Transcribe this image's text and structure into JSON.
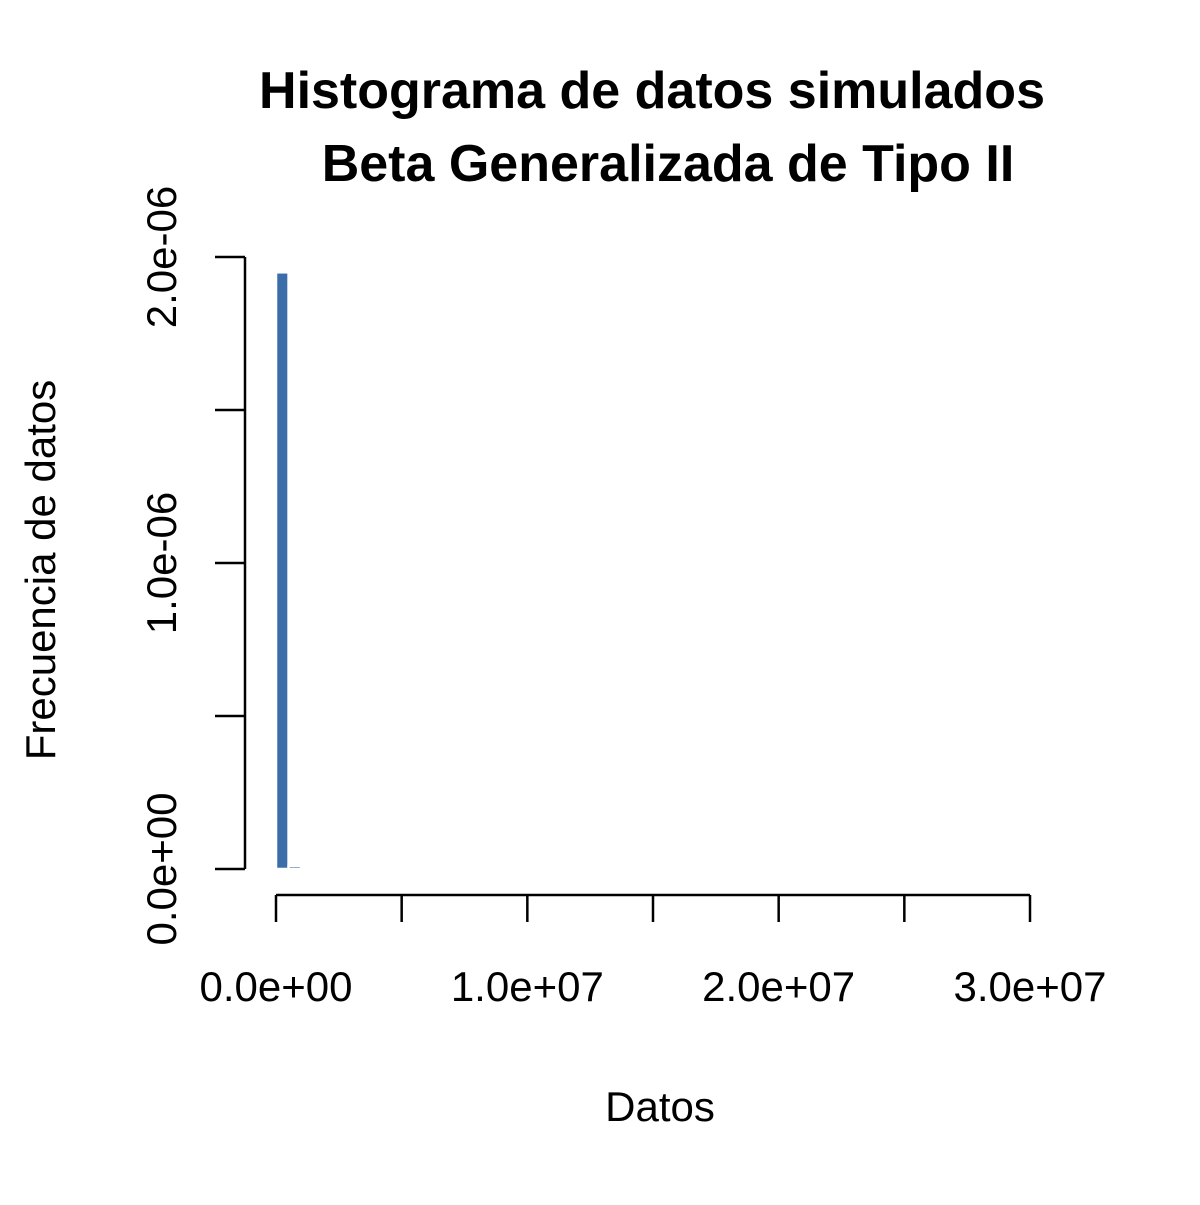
{
  "chart_data": {
    "type": "histogram",
    "title": [
      "Histograma de datos simulados",
      "Beta Generalizada de Tipo II"
    ],
    "x_label": "Datos",
    "y_label": "Frecuencia de datos",
    "bins": [
      0,
      500000,
      1000000
    ],
    "counts": [
      1.95e-06,
      1e-08
    ],
    "color": "#3b6ea8",
    "xlim": [
      0,
      30000000
    ],
    "xticks": [
      {
        "value": 0,
        "label": "0.0e+00"
      },
      {
        "value": 5000000,
        "label": null
      },
      {
        "value": 10000000,
        "label": "1.0e+07"
      },
      {
        "value": 15000000,
        "label": null
      },
      {
        "value": 20000000,
        "label": "2.0e+07"
      },
      {
        "value": 25000000,
        "label": null
      },
      {
        "value": 30000000,
        "label": "3.0e+07"
      }
    ],
    "ylim": [
      0,
      2e-06
    ],
    "yticks": [
      {
        "value": 0,
        "label": "0.0e+00"
      },
      {
        "value": 5e-07,
        "label": null
      },
      {
        "value": 1e-06,
        "label": "1.0e-06"
      },
      {
        "value": 1.5e-06,
        "label": null
      },
      {
        "value": 2e-06,
        "label": "2.0e-06"
      }
    ]
  }
}
